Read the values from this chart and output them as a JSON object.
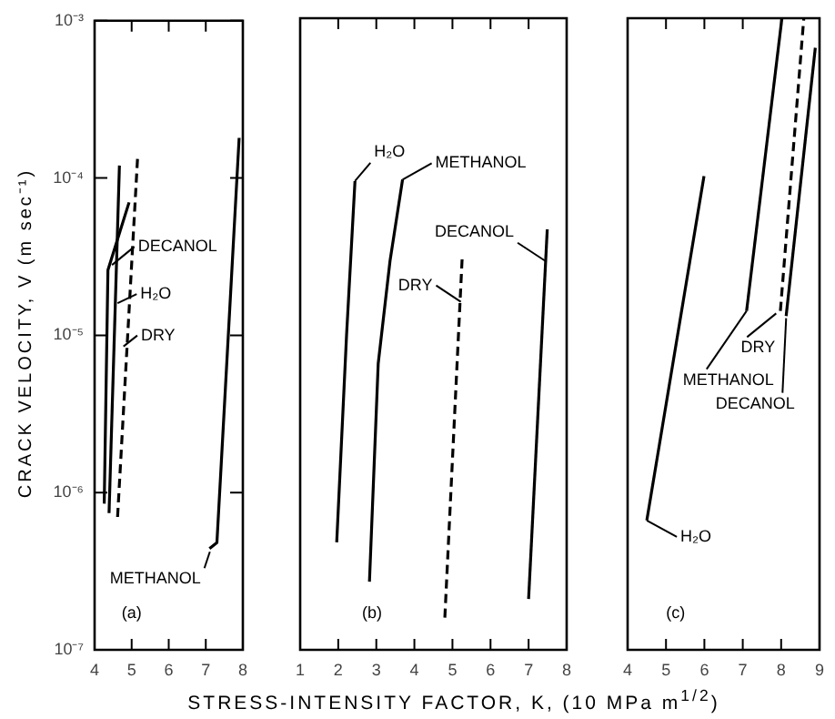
{
  "chart_data": [
    {
      "type": "line",
      "ylabel": "CRACK VELOCITY, V (m sec⁻¹)",
      "log": "y",
      "grid": false,
      "legend": false,
      "marker": "none",
      "tick_labels": "xy",
      "xlim": [
        4,
        8
      ],
      "xticks": [
        4,
        5,
        6,
        7,
        8
      ],
      "ylim": [
        1e-07,
        0.001
      ],
      "yticks": [
        {
          "value": 1e-07,
          "label": "10⁻⁷"
        },
        {
          "value": 1e-06,
          "label": "10⁻⁶"
        },
        {
          "value": 1e-05,
          "label": "10⁻⁵"
        },
        {
          "value": 0.0001,
          "label": "10⁻⁴"
        },
        {
          "value": 0.001,
          "label": "10⁻³"
        }
      ],
      "series": [
        {
          "color": "#000000",
          "line_style": "solid",
          "x": [
            4.26,
            4.36,
            4.93
          ],
          "values": [
            8.5e-07,
            2.6e-05,
            7e-05
          ]
        },
        {
          "color": "#000000",
          "line_style": "solid",
          "x": [
            4.39,
            4.67
          ],
          "values": [
            7.4e-07,
            0.00012
          ]
        },
        {
          "color": "#000000",
          "line_style": "dashed",
          "x": [
            4.62,
            5.16
          ],
          "values": [
            7e-07,
            0.000135
          ]
        },
        {
          "color": "#000000",
          "line_style": "solid",
          "x": [
            7.1,
            7.3,
            7.9
          ],
          "values": [
            4.4e-07,
            4.8e-07,
            0.00018
          ]
        }
      ],
      "annotations": [
        {
          "text": "DECANOL",
          "x": 4.47,
          "y": 2.8e-05
        },
        {
          "text": "H₂O",
          "x": 4.62,
          "y": 1.6e-05
        },
        {
          "text": "DRY",
          "x": 4.78,
          "y": 8.5e-06
        },
        {
          "text": "METHANOL",
          "x": 7.11,
          "y": 4.2e-07
        },
        "(a)"
      ]
    },
    {
      "type": "line",
      "xlabel": "STRESS-INTENSITY FACTOR, K, (10 MPa m$^{1/2}$)",
      "log": "y",
      "grid": false,
      "legend": false,
      "marker": "none",
      "tick_labels": "x",
      "xlim": [
        1,
        8
      ],
      "xticks": [
        1,
        2,
        3,
        4,
        5,
        6,
        7,
        8
      ],
      "ylim": [
        1e-07,
        0.001
      ],
      "series": [
        {
          "color": "#000000",
          "line_style": "solid",
          "x": [
            1.96,
            2.22,
            2.44
          ],
          "values": [
            4.8e-07,
            1e-05,
            9.3e-05
          ]
        },
        {
          "color": "#000000",
          "line_style": "solid",
          "x": [
            2.82,
            3.05,
            3.36,
            3.69
          ],
          "values": [
            2.7e-07,
            6.5e-06,
            2.9e-05,
            9.5e-05
          ]
        },
        {
          "color": "#000000",
          "line_style": "dashed",
          "x": [
            4.8,
            5.26
          ],
          "values": [
            1.6e-07,
            3.2e-05
          ]
        },
        {
          "color": "#000000",
          "line_style": "solid",
          "x": [
            7.0,
            7.49
          ],
          "values": [
            2.1e-07,
            4.6e-05
          ]
        }
      ],
      "annotations": [
        {
          "text": "H₂O",
          "x": 2.44,
          "y": 9.3e-05
        },
        {
          "text": "METHANOL",
          "x": 3.69,
          "y": 9.5e-05
        },
        {
          "text": "DECANOL",
          "x": 7.44,
          "y": 2.9e-05
        },
        {
          "text": "DRY",
          "x": 5.22,
          "y": 1.6e-05
        },
        "(b)"
      ]
    },
    {
      "type": "line",
      "log": "y",
      "grid": false,
      "legend": false,
      "marker": "none",
      "tick_labels": "x",
      "xlim": [
        4,
        9
      ],
      "xticks": [
        4,
        5,
        6,
        7,
        8,
        9
      ],
      "ylim": [
        1e-07,
        0.001
      ],
      "series": [
        {
          "color": "#000000",
          "line_style": "solid",
          "x": [
            4.5,
            5.99
          ],
          "values": [
            6.6e-07,
            0.0001
          ]
        },
        {
          "color": "#000000",
          "line_style": "solid",
          "x": [
            7.1,
            8.02
          ],
          "values": [
            1.4e-05,
            0.001
          ]
        },
        {
          "color": "#000000",
          "line_style": "dashed",
          "x": [
            7.98,
            8.59
          ],
          "values": [
            1.4e-05,
            0.001
          ]
        },
        {
          "color": "#000000",
          "line_style": "solid",
          "x": [
            8.13,
            8.89
          ],
          "values": [
            1.3e-05,
            0.00065
          ]
        }
      ],
      "annotations": [
        {
          "text": "H₂O",
          "x": 4.5,
          "y": 6.6e-07
        },
        {
          "text": "METHANOL",
          "x": 7.1,
          "y": 1.4e-05
        },
        {
          "text": "DRY",
          "x": 7.87,
          "y": 1.35e-05
        },
        {
          "text": "DECANOL",
          "x": 8.13,
          "y": 1.26e-05
        },
        "(c)"
      ]
    }
  ]
}
